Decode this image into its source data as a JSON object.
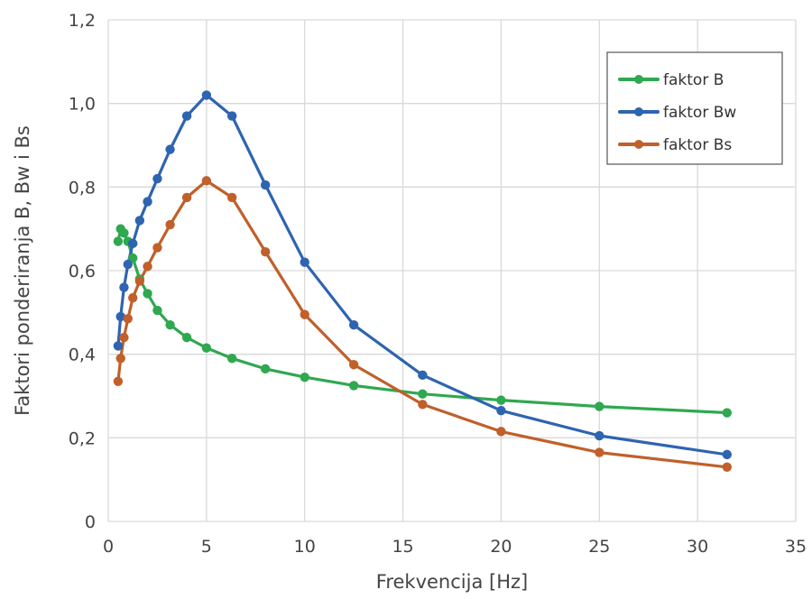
{
  "chart_data": {
    "type": "line",
    "xlabel": "Frekvencija [Hz]",
    "ylabel": "Faktori ponderiranja B, Bw i Bs",
    "xlim": [
      0,
      35
    ],
    "ylim": [
      0,
      1.2
    ],
    "x_ticks": [
      0,
      5,
      10,
      15,
      20,
      25,
      30,
      35
    ],
    "x_tick_labels": [
      "0",
      "5",
      "10",
      "15",
      "20",
      "25",
      "30",
      "35"
    ],
    "y_ticks": [
      0,
      0.2,
      0.4,
      0.6,
      0.8,
      1.0,
      1.2
    ],
    "y_tick_labels": [
      "0",
      "0,2",
      "0,4",
      "0,6",
      "0,8",
      "1,0",
      "1,2"
    ],
    "grid": true,
    "legend_position": "top-right",
    "series": [
      {
        "name": "faktor B",
        "color": "#2fa84f",
        "x": [
          0.5,
          0.63,
          0.8,
          1.0,
          1.25,
          1.6,
          2.0,
          2.5,
          3.15,
          4.0,
          5.0,
          6.3,
          8.0,
          10.0,
          12.5,
          16.0,
          20.0,
          25.0,
          31.5
        ],
        "y": [
          0.67,
          0.7,
          0.69,
          0.67,
          0.63,
          0.58,
          0.545,
          0.505,
          0.47,
          0.44,
          0.415,
          0.39,
          0.365,
          0.345,
          0.325,
          0.305,
          0.29,
          0.275,
          0.26
        ]
      },
      {
        "name": "faktor Bw",
        "color": "#2e64b0",
        "x": [
          0.5,
          0.63,
          0.8,
          1.0,
          1.25,
          1.6,
          2.0,
          2.5,
          3.15,
          4.0,
          5.0,
          6.3,
          8.0,
          10.0,
          12.5,
          16.0,
          20.0,
          25.0,
          31.5
        ],
        "y": [
          0.42,
          0.49,
          0.56,
          0.615,
          0.665,
          0.72,
          0.765,
          0.82,
          0.89,
          0.97,
          1.02,
          0.97,
          0.805,
          0.62,
          0.47,
          0.35,
          0.265,
          0.205,
          0.16
        ]
      },
      {
        "name": "faktor Bs",
        "color": "#c0602a",
        "x": [
          0.5,
          0.63,
          0.8,
          1.0,
          1.25,
          1.6,
          2.0,
          2.5,
          3.15,
          4.0,
          5.0,
          6.3,
          8.0,
          10.0,
          12.5,
          16.0,
          20.0,
          25.0,
          31.5
        ],
        "y": [
          0.335,
          0.39,
          0.44,
          0.485,
          0.535,
          0.575,
          0.61,
          0.655,
          0.71,
          0.775,
          0.815,
          0.775,
          0.645,
          0.495,
          0.375,
          0.28,
          0.215,
          0.165,
          0.13
        ]
      }
    ]
  }
}
